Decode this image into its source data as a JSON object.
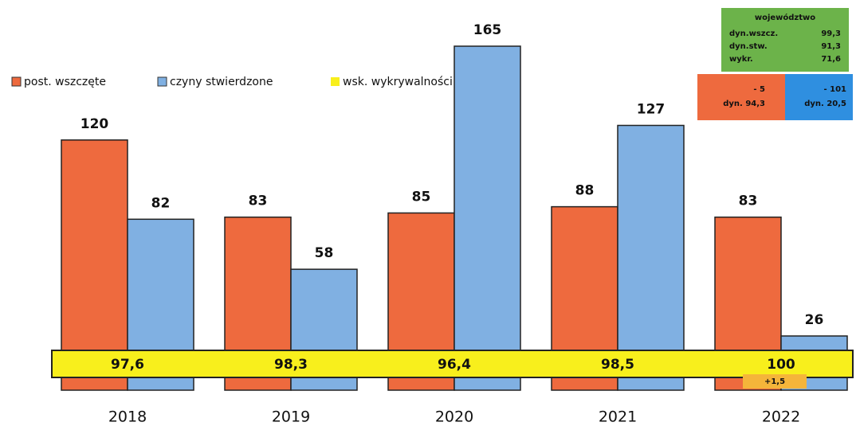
{
  "chart_data": {
    "type": "bar",
    "categories": [
      "2018",
      "2019",
      "2020",
      "2021",
      "2022"
    ],
    "series": [
      {
        "name": "post. wszczęte",
        "color": "#ee6a3e",
        "values": [
          120,
          83,
          85,
          88,
          83
        ]
      },
      {
        "name": "czyny stwierdzone",
        "color": "#80b0e2",
        "values": [
          82,
          58,
          165,
          127,
          26
        ]
      }
    ],
    "band": {
      "name": "wsk. wykrywalności",
      "color": "#f8ef1c",
      "values": [
        97.6,
        98.3,
        96.4,
        98.5,
        100
      ],
      "value_labels": [
        "97,6",
        "98,3",
        "96,4",
        "98,5",
        "100"
      ]
    },
    "band_annotation": "+1,5",
    "summary": {
      "title": "województwo",
      "rows": [
        [
          "dyn.wszcz.",
          "99,3"
        ],
        [
          "dyn.stw.",
          "91,3"
        ],
        [
          "wykr.",
          "71,6"
        ]
      ],
      "left": {
        "change": "- 5",
        "dyn": "dyn. 94,3"
      },
      "right": {
        "change": "- 101",
        "dyn": "dyn. 20,5"
      }
    }
  }
}
